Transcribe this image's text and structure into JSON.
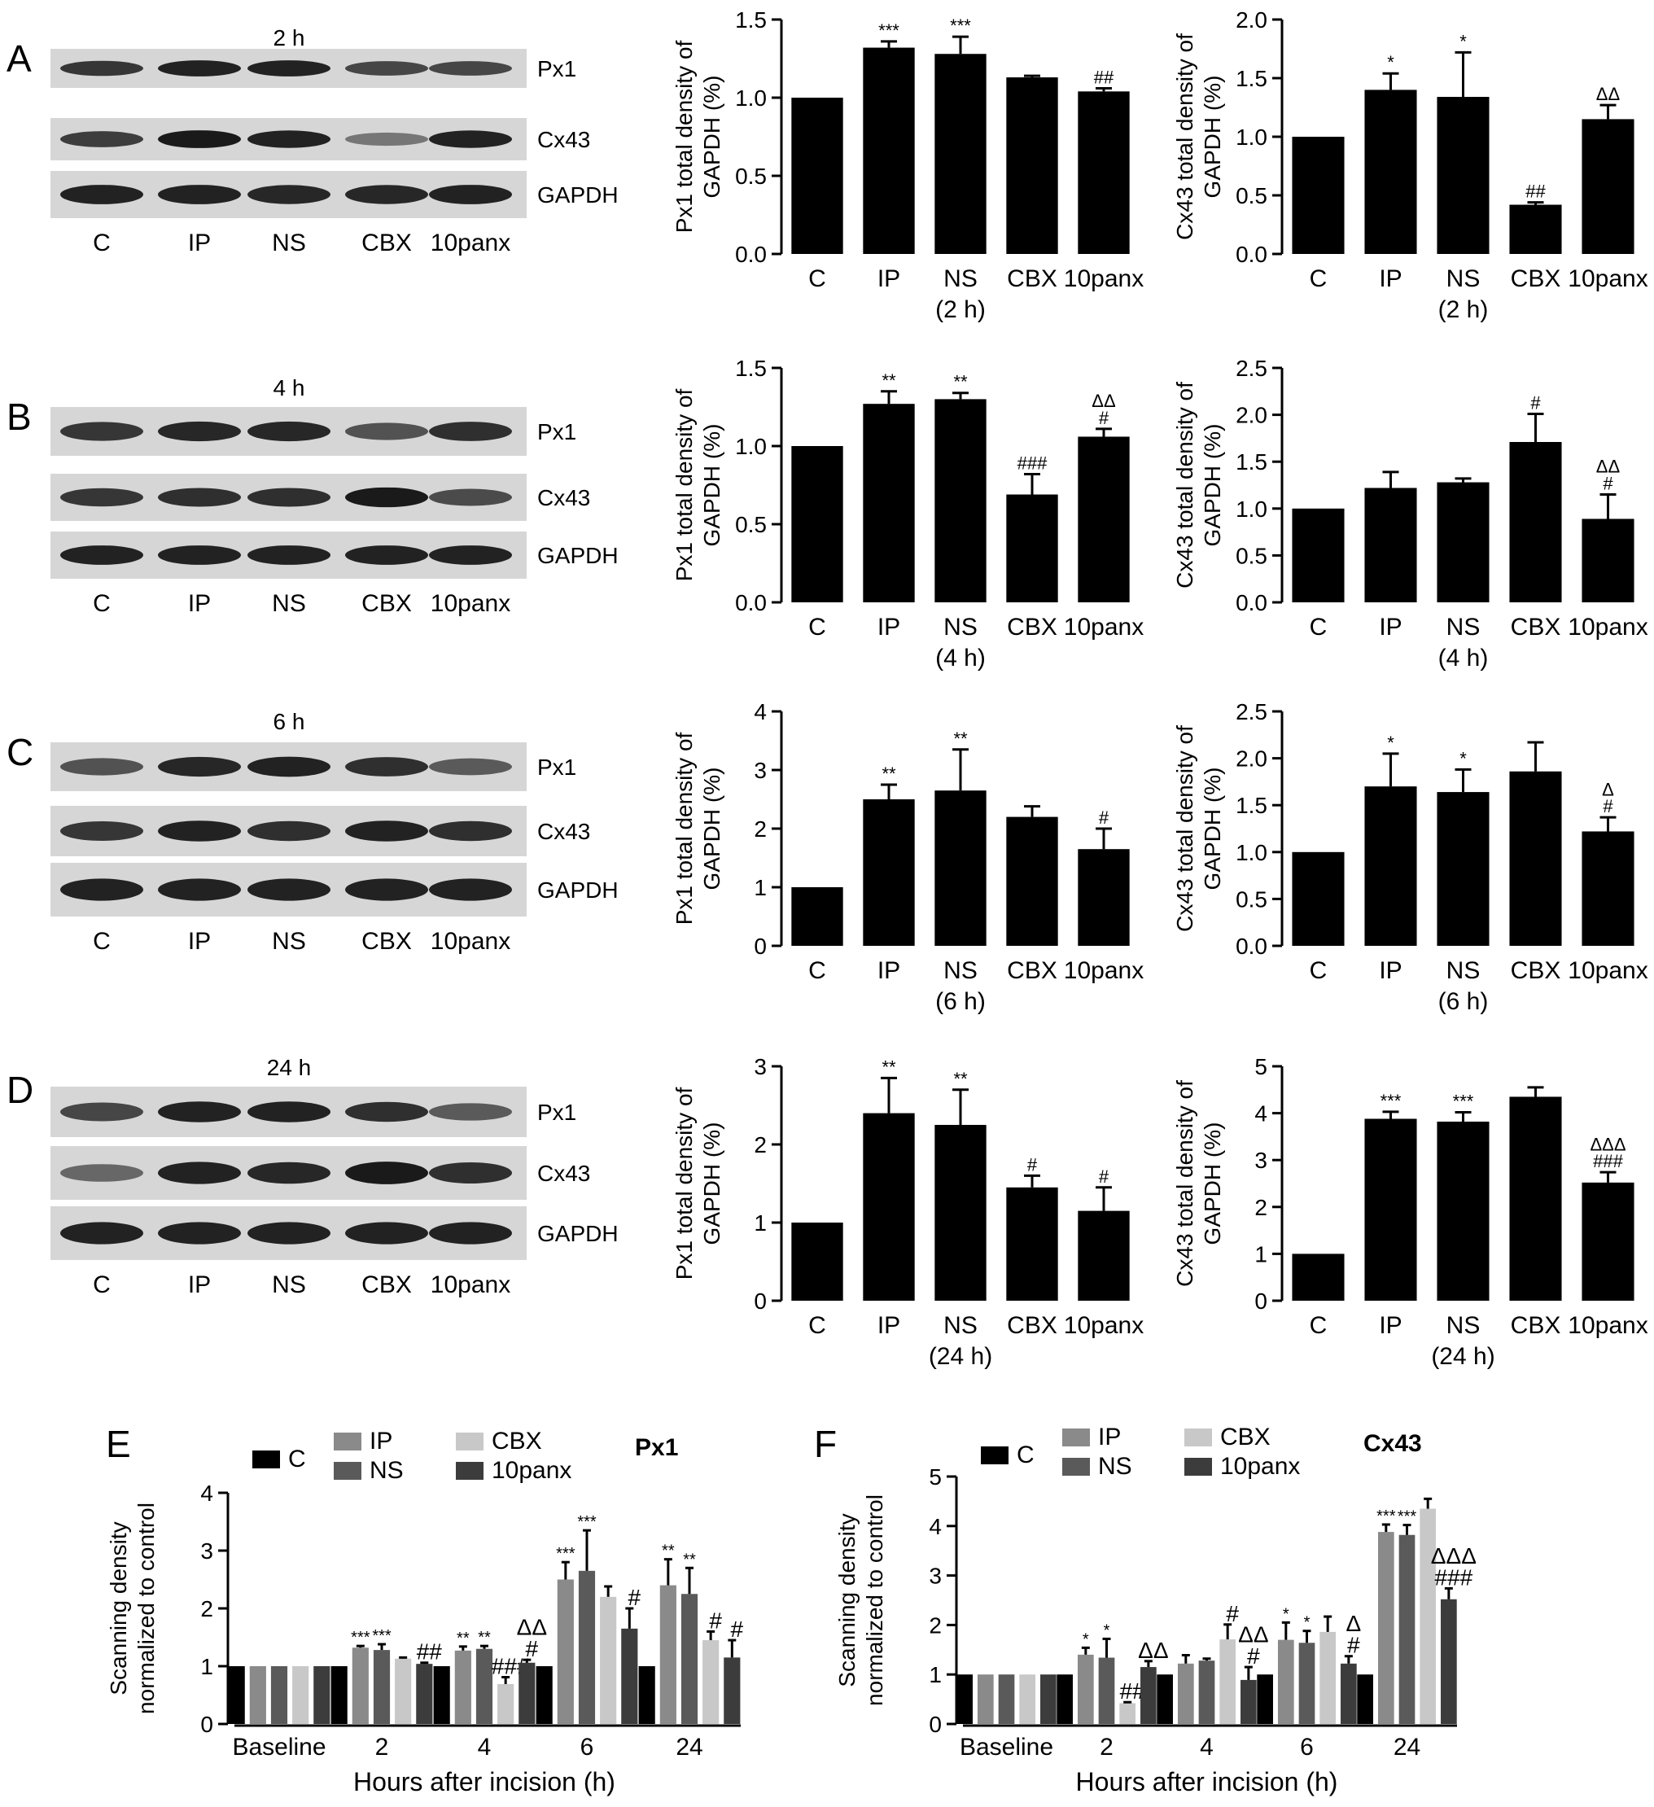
{
  "panel_letters": [
    "A",
    "B",
    "C",
    "D",
    "E",
    "F"
  ],
  "colors": {
    "bar": "#000000",
    "blot_bg": "#d6d6d6",
    "blot_band": "#1a1a1a",
    "C": "#000000",
    "IP": "#8a8a8a",
    "NS": "#5a5a5a",
    "CBX": "#c8c8c8",
    "10panx": "#3c3c3c"
  },
  "blots": [
    {
      "title": "2 h",
      "labels": [
        "Px1",
        "Cx43",
        "GAPDH"
      ],
      "lanes": [
        "C",
        "IP",
        "NS",
        "CBX",
        "10panx"
      ],
      "intensity": [
        [
          0.8,
          0.95,
          0.95,
          0.7,
          0.7
        ],
        [
          0.75,
          1.0,
          0.95,
          0.35,
          0.95
        ],
        [
          0.95,
          0.95,
          0.9,
          0.9,
          0.95
        ]
      ]
    },
    {
      "title": "4 h",
      "labels": [
        "Px1",
        "Cx43",
        "GAPDH"
      ],
      "lanes": [
        "C",
        "IP",
        "NS",
        "CBX",
        "10panx"
      ],
      "intensity": [
        [
          0.8,
          0.9,
          0.9,
          0.6,
          0.85
        ],
        [
          0.8,
          0.85,
          0.85,
          1.0,
          0.65
        ],
        [
          0.95,
          0.95,
          0.95,
          0.95,
          0.95
        ]
      ]
    },
    {
      "title": "6 h",
      "labels": [
        "Px1",
        "Cx43",
        "GAPDH"
      ],
      "lanes": [
        "C",
        "IP",
        "NS",
        "CBX",
        "10panx"
      ],
      "intensity": [
        [
          0.6,
          0.9,
          0.95,
          0.85,
          0.55
        ],
        [
          0.8,
          0.95,
          0.85,
          0.95,
          0.85
        ],
        [
          0.95,
          0.95,
          0.95,
          0.95,
          0.95
        ]
      ]
    },
    {
      "title": "24 h",
      "labels": [
        "Px1",
        "Cx43",
        "GAPDH"
      ],
      "lanes": [
        "C",
        "IP",
        "NS",
        "CBX",
        "10panx"
      ],
      "intensity": [
        [
          0.7,
          0.95,
          0.95,
          0.85,
          0.55
        ],
        [
          0.45,
          0.95,
          0.9,
          1.0,
          0.85
        ],
        [
          0.95,
          0.95,
          0.95,
          0.95,
          0.95
        ]
      ]
    }
  ],
  "chart_data": [
    {
      "id": "A-Px1",
      "type": "bar",
      "categories": [
        "C",
        "IP",
        "NS",
        "CBX",
        "10panx"
      ],
      "values": [
        1.0,
        1.32,
        1.28,
        1.13,
        1.04
      ],
      "errors": [
        0,
        0.04,
        0.11,
        0.01,
        0.02
      ],
      "annotations": [
        "",
        "***",
        "***",
        "",
        "##"
      ],
      "ylim": [
        0,
        1.5
      ],
      "yticks": [
        "0.0",
        "0.5",
        "1.0",
        "1.5"
      ],
      "ylabel": [
        "Px1 total density of",
        "GAPDH (%)"
      ],
      "xlabel": "(2 h)"
    },
    {
      "id": "A-Cx43",
      "type": "bar",
      "categories": [
        "C",
        "IP",
        "NS",
        "CBX",
        "10panx"
      ],
      "values": [
        1.0,
        1.4,
        1.34,
        0.42,
        1.15
      ],
      "errors": [
        0,
        0.14,
        0.38,
        0.02,
        0.12
      ],
      "annotations": [
        "",
        "*",
        "*",
        "##",
        "ΔΔ"
      ],
      "ylim": [
        0,
        2.0
      ],
      "yticks": [
        "0.0",
        "0.5",
        "1.0",
        "1.5",
        "2.0"
      ],
      "ylabel": [
        "Cx43 total density of",
        "GAPDH (%)"
      ],
      "xlabel": "(2 h)"
    },
    {
      "id": "B-Px1",
      "type": "bar",
      "categories": [
        "C",
        "IP",
        "NS",
        "CBX",
        "10panx"
      ],
      "values": [
        1.0,
        1.27,
        1.3,
        0.69,
        1.06
      ],
      "errors": [
        0,
        0.08,
        0.04,
        0.13,
        0.05
      ],
      "annotations": [
        "",
        "**",
        "**",
        "###",
        "ΔΔ\n#"
      ],
      "ylim": [
        0,
        1.5
      ],
      "yticks": [
        "0.0",
        "0.5",
        "1.0",
        "1.5"
      ],
      "ylabel": [
        "Px1 total density of",
        "GAPDH (%)"
      ],
      "xlabel": "(4 h)"
    },
    {
      "id": "B-Cx43",
      "type": "bar",
      "categories": [
        "C",
        "IP",
        "NS",
        "CBX",
        "10panx"
      ],
      "values": [
        1.0,
        1.22,
        1.28,
        1.71,
        0.89
      ],
      "errors": [
        0,
        0.17,
        0.04,
        0.3,
        0.26
      ],
      "annotations": [
        "",
        "",
        "",
        "#",
        "ΔΔ\n#"
      ],
      "ylim": [
        0,
        2.5
      ],
      "yticks": [
        "0.0",
        "0.5",
        "1.0",
        "1.5",
        "2.0",
        "2.5"
      ],
      "ylabel": [
        "Cx43 total density of",
        "GAPDH (%)"
      ],
      "xlabel": "(4 h)"
    },
    {
      "id": "C-Px1",
      "type": "bar",
      "categories": [
        "C",
        "IP",
        "NS",
        "CBX",
        "10panx"
      ],
      "values": [
        1.0,
        2.5,
        2.65,
        2.2,
        1.65
      ],
      "errors": [
        0,
        0.25,
        0.7,
        0.18,
        0.35
      ],
      "annotations": [
        "",
        "**",
        "**",
        "",
        "#"
      ],
      "ylim": [
        0,
        4
      ],
      "yticks": [
        "0",
        "1",
        "2",
        "3",
        "4"
      ],
      "ylabel": [
        "Px1 total density of",
        "GAPDH (%)"
      ],
      "xlabel": "(6 h)"
    },
    {
      "id": "C-Cx43",
      "type": "bar",
      "categories": [
        "C",
        "IP",
        "NS",
        "CBX",
        "10panx"
      ],
      "values": [
        1.0,
        1.7,
        1.64,
        1.86,
        1.22
      ],
      "errors": [
        0,
        0.35,
        0.24,
        0.31,
        0.15
      ],
      "annotations": [
        "",
        "*",
        "*",
        "",
        "Δ\n#"
      ],
      "ylim": [
        0,
        2.5
      ],
      "yticks": [
        "0.0",
        "0.5",
        "1.0",
        "1.5",
        "2.0",
        "2.5"
      ],
      "ylabel": [
        "Cx43 total density of",
        "GAPDH (%)"
      ],
      "xlabel": "(6 h)"
    },
    {
      "id": "D-Px1",
      "type": "bar",
      "categories": [
        "C",
        "IP",
        "NS",
        "CBX",
        "10panx"
      ],
      "values": [
        1.0,
        2.4,
        2.25,
        1.45,
        1.15
      ],
      "errors": [
        0,
        0.45,
        0.45,
        0.15,
        0.3
      ],
      "annotations": [
        "",
        "**",
        "**",
        "#",
        "#"
      ],
      "ylim": [
        0,
        3
      ],
      "yticks": [
        "0",
        "1",
        "2",
        "3"
      ],
      "ylabel": [
        "Px1 total density of",
        "GAPDH (%)"
      ],
      "xlabel": "(24 h)"
    },
    {
      "id": "D-Cx43",
      "type": "bar",
      "categories": [
        "C",
        "IP",
        "NS",
        "CBX",
        "10panx"
      ],
      "values": [
        1.0,
        3.88,
        3.82,
        4.35,
        2.52
      ],
      "errors": [
        0,
        0.15,
        0.2,
        0.2,
        0.22
      ],
      "annotations": [
        "",
        "***",
        "***",
        "",
        "ΔΔΔ\n###"
      ],
      "ylim": [
        0,
        5
      ],
      "yticks": [
        "0",
        "1",
        "2",
        "3",
        "4",
        "5"
      ],
      "ylabel": [
        "Cx43 total density of",
        "GAPDH (%)"
      ],
      "xlabel": "(24 h)"
    },
    {
      "id": "E",
      "type": "bar",
      "title": "Px1",
      "categories": [
        "Baseline",
        "2",
        "4",
        "6",
        "24"
      ],
      "legend": [
        "C",
        "IP",
        "NS",
        "CBX",
        "10panx"
      ],
      "series": [
        {
          "name": "C",
          "values": [
            1,
            1,
            1,
            1,
            1
          ],
          "errors": [
            0,
            0,
            0,
            0,
            0
          ],
          "annotations": [
            "",
            "",
            "",
            "",
            ""
          ]
        },
        {
          "name": "IP",
          "values": [
            1,
            1.32,
            1.27,
            2.5,
            2.4
          ],
          "errors": [
            0,
            0.03,
            0.07,
            0.3,
            0.45
          ],
          "annotations": [
            "",
            "***",
            "**",
            "***",
            "**"
          ]
        },
        {
          "name": "NS",
          "values": [
            1,
            1.28,
            1.3,
            2.65,
            2.25
          ],
          "errors": [
            0,
            0.1,
            0.05,
            0.7,
            0.45
          ],
          "annotations": [
            "",
            "***",
            "**",
            "***",
            "**"
          ]
        },
        {
          "name": "CBX",
          "values": [
            1,
            1.13,
            0.69,
            2.2,
            1.45
          ],
          "errors": [
            0,
            0.02,
            0.12,
            0.18,
            0.15
          ],
          "annotations": [
            "",
            "",
            "###",
            "",
            "#"
          ]
        },
        {
          "name": "10panx",
          "values": [
            1,
            1.04,
            1.06,
            1.65,
            1.15
          ],
          "errors": [
            0,
            0.02,
            0.05,
            0.35,
            0.3
          ],
          "annotations": [
            "",
            "##",
            "ΔΔ\n#",
            "#",
            "#"
          ]
        }
      ],
      "ylim": [
        0,
        4
      ],
      "yticks": [
        "0",
        "1",
        "2",
        "3",
        "4"
      ],
      "ylabel": [
        "Scanning density",
        "normalized to control"
      ],
      "xlabel": "Hours after incision (h)"
    },
    {
      "id": "F",
      "type": "bar",
      "title": "Cx43",
      "categories": [
        "Baseline",
        "2",
        "4",
        "6",
        "24"
      ],
      "legend": [
        "C",
        "IP",
        "NS",
        "CBX",
        "10panx"
      ],
      "series": [
        {
          "name": "C",
          "values": [
            1,
            1,
            1,
            1,
            1
          ],
          "errors": [
            0,
            0,
            0,
            0,
            0
          ],
          "annotations": [
            "",
            "",
            "",
            "",
            ""
          ]
        },
        {
          "name": "IP",
          "values": [
            1,
            1.4,
            1.22,
            1.7,
            3.88
          ],
          "errors": [
            0,
            0.14,
            0.17,
            0.35,
            0.15
          ],
          "annotations": [
            "",
            "*",
            "",
            "*",
            "***"
          ]
        },
        {
          "name": "NS",
          "values": [
            1,
            1.34,
            1.28,
            1.64,
            3.82
          ],
          "errors": [
            0,
            0.38,
            0.04,
            0.24,
            0.2
          ],
          "annotations": [
            "",
            "*",
            "",
            "*",
            "***"
          ]
        },
        {
          "name": "CBX",
          "values": [
            1,
            0.42,
            1.71,
            1.86,
            4.35
          ],
          "errors": [
            0,
            0.02,
            0.3,
            0.31,
            0.2
          ],
          "annotations": [
            "",
            "##",
            "#",
            "",
            ""
          ]
        },
        {
          "name": "10panx",
          "values": [
            1,
            1.15,
            0.89,
            1.22,
            2.52
          ],
          "errors": [
            0,
            0.12,
            0.26,
            0.15,
            0.22
          ],
          "annotations": [
            "",
            "ΔΔ",
            "ΔΔ\n#",
            "Δ\n#",
            "ΔΔΔ\n###"
          ]
        }
      ],
      "ylim": [
        0,
        5
      ],
      "yticks": [
        "0",
        "1",
        "2",
        "3",
        "4",
        "5"
      ],
      "ylabel": [
        "Scanning density",
        "normalized to control"
      ],
      "xlabel": "Hours after incision (h)"
    }
  ]
}
